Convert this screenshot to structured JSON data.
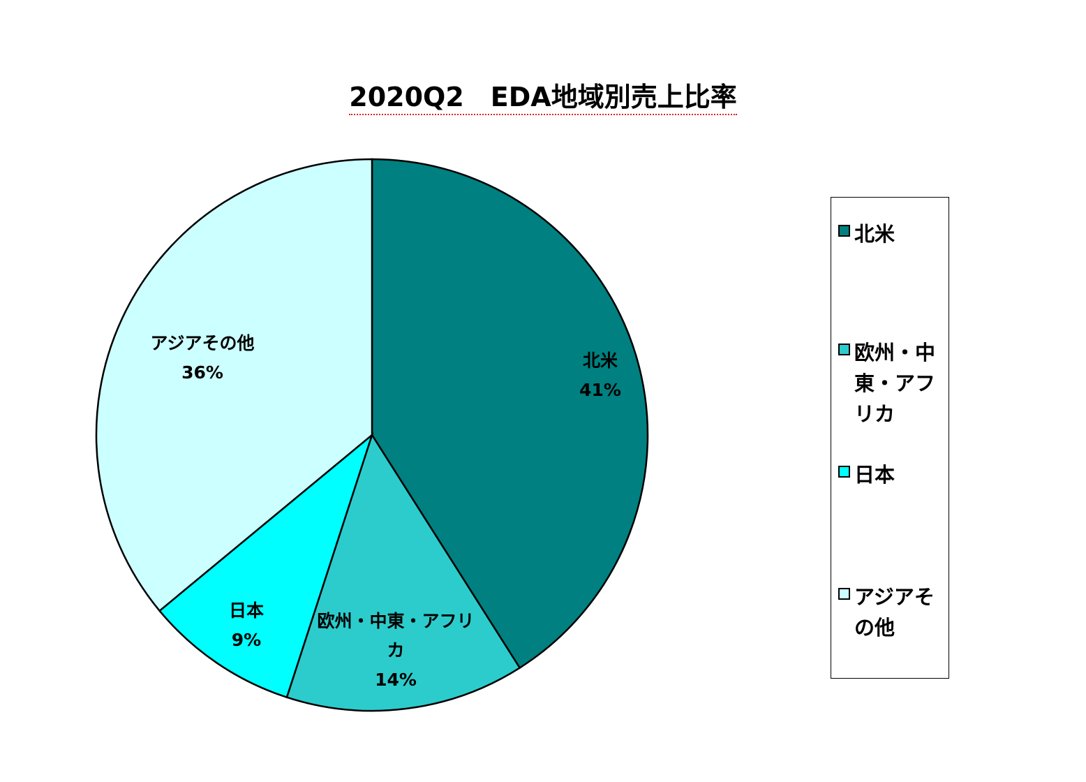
{
  "chart_data": {
    "type": "pie",
    "title": "2020Q2　EDA地域別売上比率",
    "slices": [
      {
        "label": "北米",
        "value": 41,
        "percent_label": "41%",
        "color": "#008080"
      },
      {
        "label": "欧州・中東・アフリカ",
        "value": 14,
        "percent_label": "14%",
        "color": "#2ccccc"
      },
      {
        "label": "日本",
        "value": 9,
        "percent_label": "9%",
        "color": "#00ffff"
      },
      {
        "label": "アジアその他",
        "value": 36,
        "percent_label": "36%",
        "color": "#ccffff"
      }
    ],
    "legend_position": "right"
  }
}
